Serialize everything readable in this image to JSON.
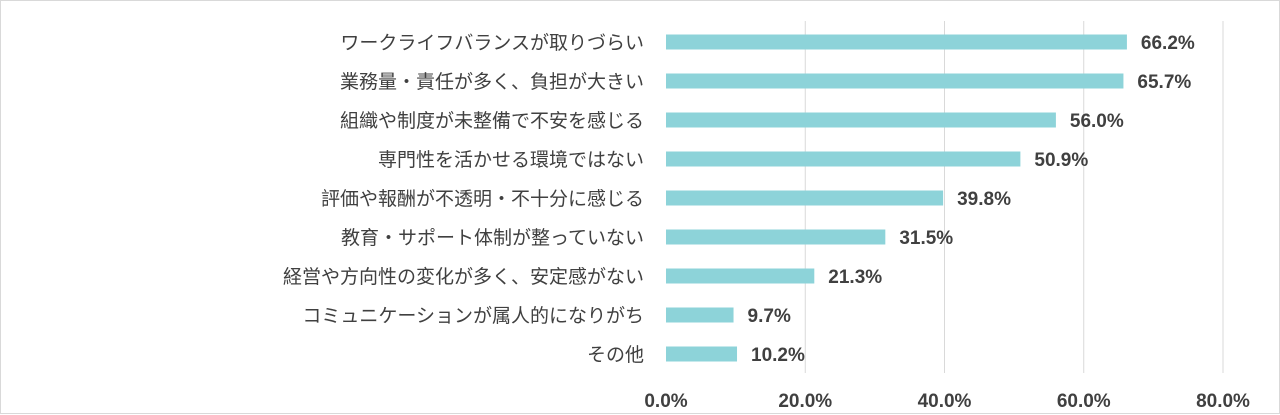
{
  "chart_data": {
    "type": "bar",
    "orientation": "horizontal",
    "categories": [
      "ワークライフバランスが取りづらい",
      "業務量・責任が多く、負担が大きい",
      "組織や制度が未整備で不安を感じる",
      "専門性を活かせる環境ではない",
      "評価や報酬が不透明・不十分に感じる",
      "教育・サポート体制が整っていない",
      "経営や方向性の変化が多く、安定感がない",
      "コミュニケーションが属人的になりがち",
      "その他"
    ],
    "values": [
      66.2,
      65.7,
      56.0,
      50.9,
      39.8,
      31.5,
      21.3,
      9.7,
      10.2
    ],
    "value_labels": [
      "66.2%",
      "65.7%",
      "56.0%",
      "50.9%",
      "39.8%",
      "31.5%",
      "21.3%",
      "9.7%",
      "10.2%"
    ],
    "xlim": [
      0,
      80
    ],
    "ticks": [
      0,
      20,
      40,
      60,
      80
    ],
    "tick_labels": [
      "0.0%",
      "20.0%",
      "40.0%",
      "60.0%",
      "80.0%"
    ],
    "grid": "vertical",
    "colors": {
      "bar": "#8dd3d9",
      "grid": "#d9d9d9",
      "text": "#404040"
    }
  }
}
